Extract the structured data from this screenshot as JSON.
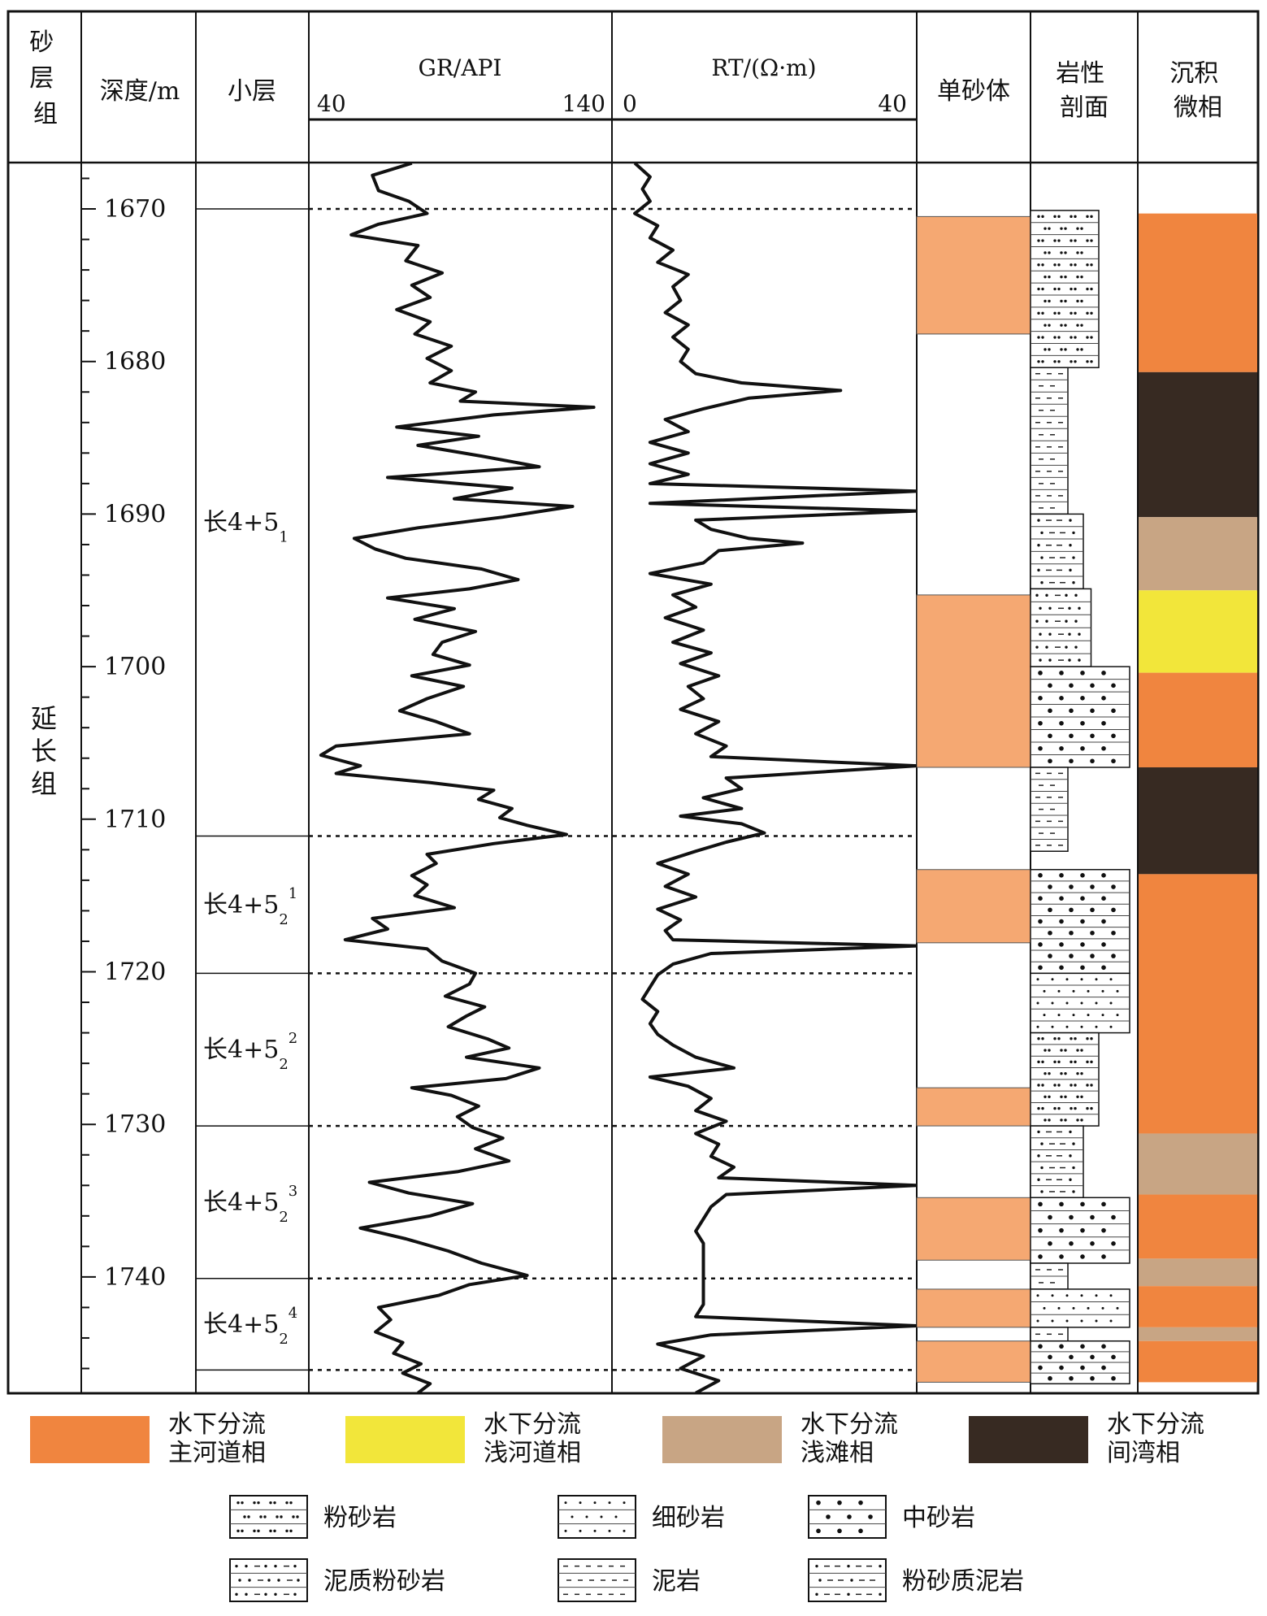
{
  "header": {
    "group_col": "砂层组",
    "depth_col": "深度/m",
    "layer_col": "小层",
    "gr_col": {
      "title": "GR/API",
      "min_label": "40",
      "max_label": "140"
    },
    "rt_col": {
      "title": "RT/(Ω·m)",
      "min_label": "0",
      "max_label": "40"
    },
    "sand_col": "单砂体",
    "litho_col": "岩性剖面",
    "facies_col": "沉积微相"
  },
  "formation": "延长组",
  "depth_axis": {
    "min": 1667,
    "max": 1748,
    "ticks": [
      1670,
      1680,
      1690,
      1700,
      1710,
      1720,
      1730,
      1740
    ],
    "minor_step": 2
  },
  "sublayers": [
    {
      "label": "长4+5",
      "sub": "1",
      "sup": "",
      "top": 1670,
      "bottom": 1711.1
    },
    {
      "label": "长4+5",
      "sub": "2",
      "sup": "1",
      "top": 1711.1,
      "bottom": 1720.1
    },
    {
      "label": "长4+5",
      "sub": "2",
      "sup": "2",
      "top": 1720.1,
      "bottom": 1730.1
    },
    {
      "label": "长4+5",
      "sub": "2",
      "sup": "3",
      "top": 1730.1,
      "bottom": 1740.1
    },
    {
      "label": "长4+5",
      "sub": "2",
      "sup": "4",
      "top": 1740.1,
      "bottom": 1746.1
    }
  ],
  "sand_bodies": [
    {
      "top": 1670.5,
      "bottom": 1678.2
    },
    {
      "top": 1695.3,
      "bottom": 1706.6
    },
    {
      "top": 1713.3,
      "bottom": 1718.1
    },
    {
      "top": 1727.6,
      "bottom": 1730.1
    },
    {
      "top": 1734.8,
      "bottom": 1738.9
    },
    {
      "top": 1740.8,
      "bottom": 1743.3
    },
    {
      "top": 1744.2,
      "bottom": 1746.9
    }
  ],
  "lithology": [
    {
      "type": "siltstone",
      "top": 1670.1,
      "bottom": 1680.4,
      "grain": 1
    },
    {
      "type": "mudstone",
      "top": 1680.4,
      "bottom": 1690.0,
      "grain": 0
    },
    {
      "type": "silty_mudstone",
      "top": 1690.0,
      "bottom": 1694.9,
      "grain": 0.5
    },
    {
      "type": "argillaceous_siltstone",
      "top": 1694.9,
      "bottom": 1700.0,
      "grain": 0.75
    },
    {
      "type": "medium_sandstone",
      "top": 1700.0,
      "bottom": 1706.6,
      "grain": 2
    },
    {
      "type": "mudstone",
      "top": 1706.6,
      "bottom": 1712.1,
      "grain": 0
    },
    {
      "type": "medium_sandstone",
      "top": 1713.3,
      "bottom": 1720.1,
      "grain": 2
    },
    {
      "type": "fine_sandstone",
      "top": 1720.1,
      "bottom": 1724.0,
      "grain": 2
    },
    {
      "type": "siltstone",
      "top": 1724.0,
      "bottom": 1730.1,
      "grain": 1
    },
    {
      "type": "silty_mudstone",
      "top": 1730.1,
      "bottom": 1734.8,
      "grain": 0.5
    },
    {
      "type": "medium_sandstone",
      "top": 1734.8,
      "bottom": 1739.1,
      "grain": 2
    },
    {
      "type": "mudstone",
      "top": 1739.1,
      "bottom": 1740.8,
      "grain": 0
    },
    {
      "type": "fine_sandstone",
      "top": 1740.8,
      "bottom": 1743.3,
      "grain": 2
    },
    {
      "type": "mudstone",
      "top": 1743.3,
      "bottom": 1744.2,
      "grain": 0
    },
    {
      "type": "medium_sandstone",
      "top": 1744.2,
      "bottom": 1747.0,
      "grain": 2
    }
  ],
  "facies_strip": [
    {
      "facies": "main_channel",
      "top": 1670.3,
      "bottom": 1680.7
    },
    {
      "facies": "interdistributary_bay",
      "top": 1680.7,
      "bottom": 1690.2
    },
    {
      "facies": "shoal",
      "top": 1690.2,
      "bottom": 1695.0
    },
    {
      "facies": "shallow_channel",
      "top": 1695.0,
      "bottom": 1700.4
    },
    {
      "facies": "main_channel",
      "top": 1700.4,
      "bottom": 1706.6
    },
    {
      "facies": "interdistributary_bay",
      "top": 1706.6,
      "bottom": 1713.6
    },
    {
      "facies": "main_channel",
      "top": 1713.6,
      "bottom": 1730.6
    },
    {
      "facies": "shoal",
      "top": 1730.6,
      "bottom": 1734.6
    },
    {
      "facies": "main_channel",
      "top": 1734.6,
      "bottom": 1738.8
    },
    {
      "facies": "shoal",
      "top": 1738.8,
      "bottom": 1740.6
    },
    {
      "facies": "main_channel",
      "top": 1740.6,
      "bottom": 1743.3
    },
    {
      "facies": "shoal",
      "top": 1743.3,
      "bottom": 1744.2
    },
    {
      "facies": "main_channel",
      "top": 1744.2,
      "bottom": 1746.9
    }
  ],
  "facies_legend": [
    {
      "key": "main_channel",
      "line1": "水下分流",
      "line2": "主河道相",
      "color": "#F0853F"
    },
    {
      "key": "shallow_channel",
      "line1": "水下分流",
      "line2": "浅河道相",
      "color": "#F2E63A"
    },
    {
      "key": "shoal",
      "line1": "水下分流",
      "line2": "浅滩相",
      "color": "#C8A584"
    },
    {
      "key": "interdistributary_bay",
      "line1": "水下分流",
      "line2": "间湾相",
      "color": "#372A22"
    }
  ],
  "litho_legend": [
    {
      "key": "siltstone",
      "label": "粉砂岩"
    },
    {
      "key": "fine_sandstone",
      "label": "细砂岩"
    },
    {
      "key": "medium_sandstone",
      "label": "中砂岩"
    },
    {
      "key": "argillaceous_siltstone",
      "label": "泥质粉砂岩"
    },
    {
      "key": "mudstone",
      "label": "泥岩"
    },
    {
      "key": "silty_mudstone",
      "label": "粉砂质泥岩"
    }
  ],
  "colors": {
    "sand_body": "#F5A872",
    "curve": "#111111"
  },
  "logs": {
    "gr": {
      "min": 40,
      "max": 140,
      "points": [
        [
          1667,
          74
        ],
        [
          1667.8,
          61
        ],
        [
          1668.8,
          63
        ],
        [
          1669.5,
          73
        ],
        [
          1670.3,
          79
        ],
        [
          1671.0,
          63
        ],
        [
          1671.7,
          54
        ],
        [
          1672.4,
          76
        ],
        [
          1673.4,
          72
        ],
        [
          1674.2,
          84
        ],
        [
          1675.0,
          74
        ],
        [
          1675.8,
          80
        ],
        [
          1676.6,
          69
        ],
        [
          1677.4,
          80
        ],
        [
          1678.2,
          75
        ],
        [
          1679.0,
          87
        ],
        [
          1679.8,
          79
        ],
        [
          1680.6,
          87
        ],
        [
          1681.4,
          80
        ],
        [
          1682.0,
          95
        ],
        [
          1682.6,
          90
        ],
        [
          1683.0,
          134
        ],
        [
          1683.5,
          101
        ],
        [
          1684.3,
          69
        ],
        [
          1684.9,
          96
        ],
        [
          1685.5,
          76
        ],
        [
          1686.2,
          97
        ],
        [
          1686.9,
          116
        ],
        [
          1687.6,
          66
        ],
        [
          1688.3,
          107
        ],
        [
          1689.0,
          88
        ],
        [
          1689.5,
          127
        ],
        [
          1690.2,
          104
        ],
        [
          1690.9,
          76
        ],
        [
          1691.6,
          55
        ],
        [
          1692.3,
          62
        ],
        [
          1692.9,
          72
        ],
        [
          1693.6,
          97
        ],
        [
          1694.3,
          109
        ],
        [
          1694.9,
          93
        ],
        [
          1695.5,
          66
        ],
        [
          1696.2,
          88
        ],
        [
          1696.9,
          75
        ],
        [
          1697.7,
          95
        ],
        [
          1698.4,
          84
        ],
        [
          1699.2,
          81
        ],
        [
          1699.9,
          93
        ],
        [
          1700.6,
          74
        ],
        [
          1701.3,
          91
        ],
        [
          1702.1,
          79
        ],
        [
          1702.9,
          70
        ],
        [
          1703.6,
          82
        ],
        [
          1704.4,
          93
        ],
        [
          1705.2,
          49
        ],
        [
          1705.8,
          44
        ],
        [
          1706.5,
          57
        ],
        [
          1707.0,
          49
        ],
        [
          1707.6,
          80
        ],
        [
          1708.1,
          101
        ],
        [
          1708.7,
          96
        ],
        [
          1709.3,
          107
        ],
        [
          1709.9,
          103
        ],
        [
          1710.4,
          112
        ],
        [
          1711.0,
          125
        ],
        [
          1711.6,
          101
        ],
        [
          1712.3,
          79
        ],
        [
          1712.9,
          82
        ],
        [
          1713.7,
          74
        ],
        [
          1714.3,
          79
        ],
        [
          1715.0,
          75
        ],
        [
          1715.8,
          88
        ],
        [
          1716.5,
          61
        ],
        [
          1717.2,
          66
        ],
        [
          1717.9,
          52
        ],
        [
          1718.5,
          79
        ],
        [
          1719.3,
          84
        ],
        [
          1720.1,
          95
        ],
        [
          1720.8,
          93
        ],
        [
          1721.6,
          85
        ],
        [
          1722.3,
          98
        ],
        [
          1722.9,
          92
        ],
        [
          1723.6,
          86
        ],
        [
          1724.4,
          99
        ],
        [
          1725.0,
          106
        ],
        [
          1725.6,
          92
        ],
        [
          1726.3,
          116
        ],
        [
          1727.0,
          105
        ],
        [
          1727.6,
          74
        ],
        [
          1728.1,
          87
        ],
        [
          1728.8,
          96
        ],
        [
          1729.5,
          89
        ],
        [
          1730.2,
          94
        ],
        [
          1730.9,
          104
        ],
        [
          1731.6,
          95
        ],
        [
          1732.4,
          106
        ],
        [
          1733.1,
          89
        ],
        [
          1733.8,
          60
        ],
        [
          1734.5,
          73
        ],
        [
          1735.2,
          94
        ],
        [
          1736.0,
          80
        ],
        [
          1736.8,
          57
        ],
        [
          1737.5,
          72
        ],
        [
          1738.3,
          86
        ],
        [
          1739.1,
          97
        ],
        [
          1739.9,
          112
        ],
        [
          1740.5,
          93
        ],
        [
          1741.2,
          83
        ],
        [
          1742.0,
          63
        ],
        [
          1742.8,
          67
        ],
        [
          1743.6,
          62
        ],
        [
          1744.3,
          71
        ],
        [
          1745.0,
          68
        ],
        [
          1745.7,
          77
        ],
        [
          1746.3,
          71
        ],
        [
          1747.0,
          80
        ],
        [
          1747.6,
          76
        ]
      ]
    },
    "rt": {
      "min": 0,
      "max": 40,
      "points": [
        [
          1667,
          3
        ],
        [
          1667.9,
          5
        ],
        [
          1668.7,
          4
        ],
        [
          1669.5,
          5
        ],
        [
          1670.3,
          3
        ],
        [
          1671.1,
          6
        ],
        [
          1671.9,
          5
        ],
        [
          1672.7,
          8
        ],
        [
          1673.5,
          6
        ],
        [
          1674.3,
          10
        ],
        [
          1675.1,
          8
        ],
        [
          1676.0,
          9
        ],
        [
          1676.8,
          7
        ],
        [
          1677.6,
          10
        ],
        [
          1678.4,
          8
        ],
        [
          1679.2,
          10
        ],
        [
          1680.0,
          9
        ],
        [
          1680.8,
          11
        ],
        [
          1681.4,
          17
        ],
        [
          1681.9,
          30
        ],
        [
          1682.4,
          18
        ],
        [
          1683.1,
          12
        ],
        [
          1683.8,
          7
        ],
        [
          1684.6,
          10
        ],
        [
          1685.3,
          5
        ],
        [
          1686.0,
          10
        ],
        [
          1686.7,
          5
        ],
        [
          1687.4,
          10
        ],
        [
          1688.0,
          5
        ],
        [
          1688.5,
          40
        ],
        [
          1689.3,
          5
        ],
        [
          1689.8,
          40
        ],
        [
          1690.4,
          11
        ],
        [
          1691.0,
          13
        ],
        [
          1691.6,
          18
        ],
        [
          1691.9,
          25
        ],
        [
          1692.4,
          14
        ],
        [
          1693.2,
          12
        ],
        [
          1693.9,
          5
        ],
        [
          1694.6,
          13
        ],
        [
          1695.3,
          8
        ],
        [
          1696.1,
          11
        ],
        [
          1696.8,
          7
        ],
        [
          1697.6,
          12
        ],
        [
          1698.4,
          8
        ],
        [
          1699.1,
          13
        ],
        [
          1699.8,
          9
        ],
        [
          1700.6,
          14
        ],
        [
          1701.3,
          10
        ],
        [
          1702.1,
          12
        ],
        [
          1702.8,
          9
        ],
        [
          1703.6,
          14
        ],
        [
          1704.4,
          11
        ],
        [
          1705.2,
          15
        ],
        [
          1705.9,
          13
        ],
        [
          1706.5,
          40
        ],
        [
          1707.3,
          15
        ],
        [
          1708.0,
          17
        ],
        [
          1708.6,
          12
        ],
        [
          1709.3,
          17
        ],
        [
          1709.8,
          9
        ],
        [
          1710.3,
          17
        ],
        [
          1710.9,
          20
        ],
        [
          1711.5,
          15
        ],
        [
          1712.1,
          11
        ],
        [
          1712.9,
          6
        ],
        [
          1713.6,
          10
        ],
        [
          1714.4,
          7
        ],
        [
          1715.1,
          11
        ],
        [
          1715.9,
          6
        ],
        [
          1716.6,
          9
        ],
        [
          1717.3,
          7
        ],
        [
          1717.9,
          8
        ],
        [
          1718.3,
          40
        ],
        [
          1718.8,
          13
        ],
        [
          1719.5,
          8
        ],
        [
          1720.2,
          6
        ],
        [
          1721.0,
          5
        ],
        [
          1721.8,
          4
        ],
        [
          1722.6,
          6
        ],
        [
          1723.4,
          5
        ],
        [
          1724.1,
          6
        ],
        [
          1724.8,
          8
        ],
        [
          1725.6,
          11
        ],
        [
          1726.3,
          16
        ],
        [
          1726.9,
          5
        ],
        [
          1727.5,
          10
        ],
        [
          1728.3,
          13
        ],
        [
          1729.1,
          11
        ],
        [
          1729.8,
          15
        ],
        [
          1730.6,
          11
        ],
        [
          1731.3,
          14
        ],
        [
          1732.1,
          13
        ],
        [
          1732.8,
          16
        ],
        [
          1733.5,
          14
        ],
        [
          1734.0,
          40
        ],
        [
          1734.6,
          15
        ],
        [
          1735.4,
          13
        ],
        [
          1736.2,
          12
        ],
        [
          1737.0,
          11
        ],
        [
          1737.8,
          12
        ],
        [
          1738.6,
          12
        ],
        [
          1739.4,
          12
        ],
        [
          1740.2,
          12
        ],
        [
          1741.0,
          12
        ],
        [
          1741.8,
          12
        ],
        [
          1742.6,
          11
        ],
        [
          1743.2,
          40
        ],
        [
          1743.8,
          13
        ],
        [
          1744.4,
          6
        ],
        [
          1745.2,
          12
        ],
        [
          1746.0,
          9
        ],
        [
          1746.8,
          14
        ],
        [
          1747.6,
          11
        ]
      ]
    }
  }
}
